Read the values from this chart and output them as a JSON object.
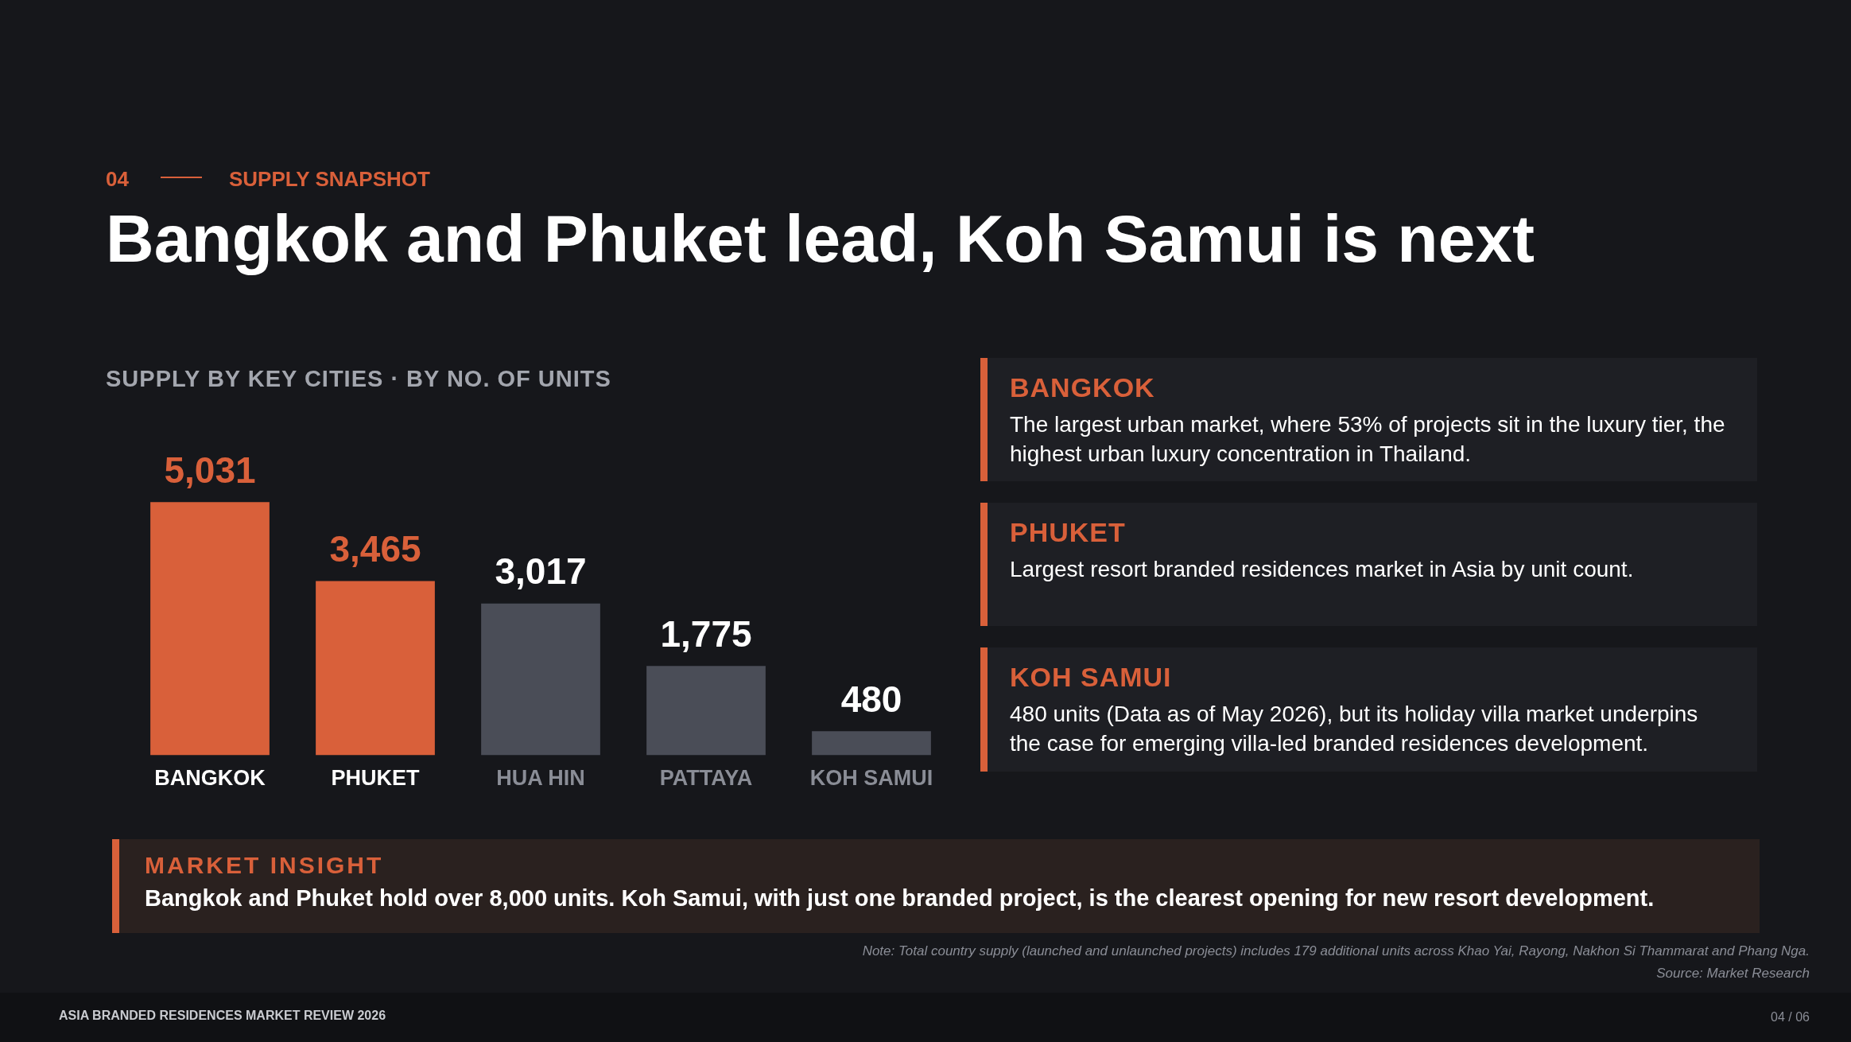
{
  "chart_data": {
    "type": "bar",
    "title": "Bangkok and Phuket lead, Koh Samui is next",
    "subtitle": "SUPPLY BY KEY CITIES · BY NO. OF UNITS",
    "categories": [
      "BANGKOK",
      "PHUKET",
      "HUA HIN",
      "PATTAYA",
      "KOH SAMUI"
    ],
    "values": [
      5031,
      3465,
      3017,
      1775,
      480
    ],
    "colors": [
      "#d9603a",
      "#d9603a",
      "#4a4d57",
      "#4a4d57",
      "#4a4d57"
    ],
    "value_labels": [
      "5,031",
      "3,465",
      "3,017",
      "1,775",
      "480"
    ],
    "tick_labels": "x",
    "annotations": [
      "04",
      "SUPPLY SNAPSHOT",
      "BANGKOK",
      "The largest urban market, where 53% of projects sit in the luxury tier, the highest urban luxury concentration in Thailand.",
      "PHUKET",
      "Largest resort branded residences market in Asia by unit count.",
      "KOH SAMUI",
      "480 units (Data as of May 2026), but its holiday villa market underpins the case for emerging villa-led branded residences development.",
      "MARKET INSIGHT",
      "Bangkok and Phuket hold over 8,000 units. Koh Samui, with just one branded project, is the clearest opening for new resort development.",
      "Note: Total country supply (launched and unlaunched projects) includes 179 additional units across Khao Yai, Rayong, Nakhon Si Thammarat and Phang Nga.",
      "Source: Market Research",
      "ASIA BRANDED RESIDENCES MARKET REVIEW 2026",
      "04 / 06"
    ]
  }
}
